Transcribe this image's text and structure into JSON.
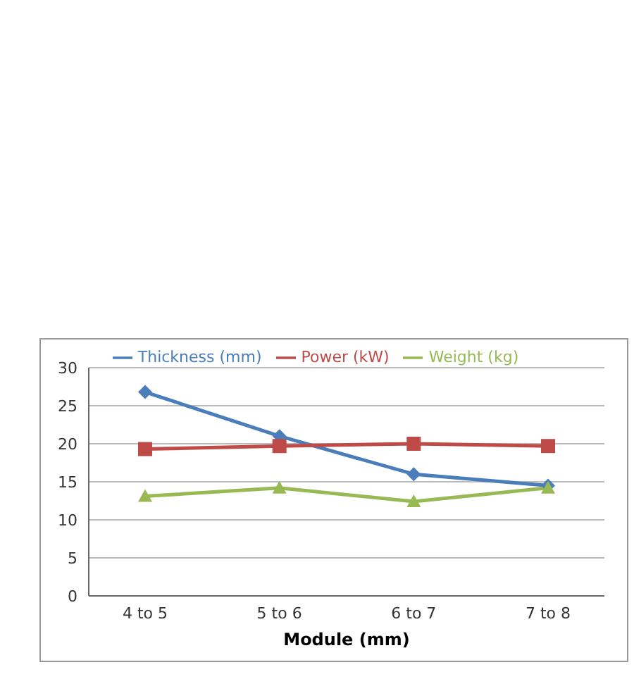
{
  "chart_data": {
    "type": "line",
    "xlabel": "Module (mm)",
    "categories": [
      "4 to 5",
      "5 to 6",
      "6 to 7",
      "7 to 8"
    ],
    "series": [
      {
        "name": "Thickness (mm)",
        "color": "#4a7ebb",
        "marker": "diamond",
        "values": [
          26.8,
          21,
          16,
          14.5
        ]
      },
      {
        "name": "Power (kW)",
        "color": "#be4b48",
        "marker": "square",
        "values": [
          19.3,
          19.7,
          20,
          19.7
        ]
      },
      {
        "name": "Weight (kg)",
        "color": "#98b954",
        "marker": "triangle",
        "values": [
          13.1,
          14.2,
          12.4,
          14.2
        ]
      }
    ],
    "ylim": [
      0,
      30
    ],
    "yticks": [
      0,
      5,
      10,
      15,
      20,
      25,
      30
    ],
    "grid": "y",
    "legend": "top"
  }
}
